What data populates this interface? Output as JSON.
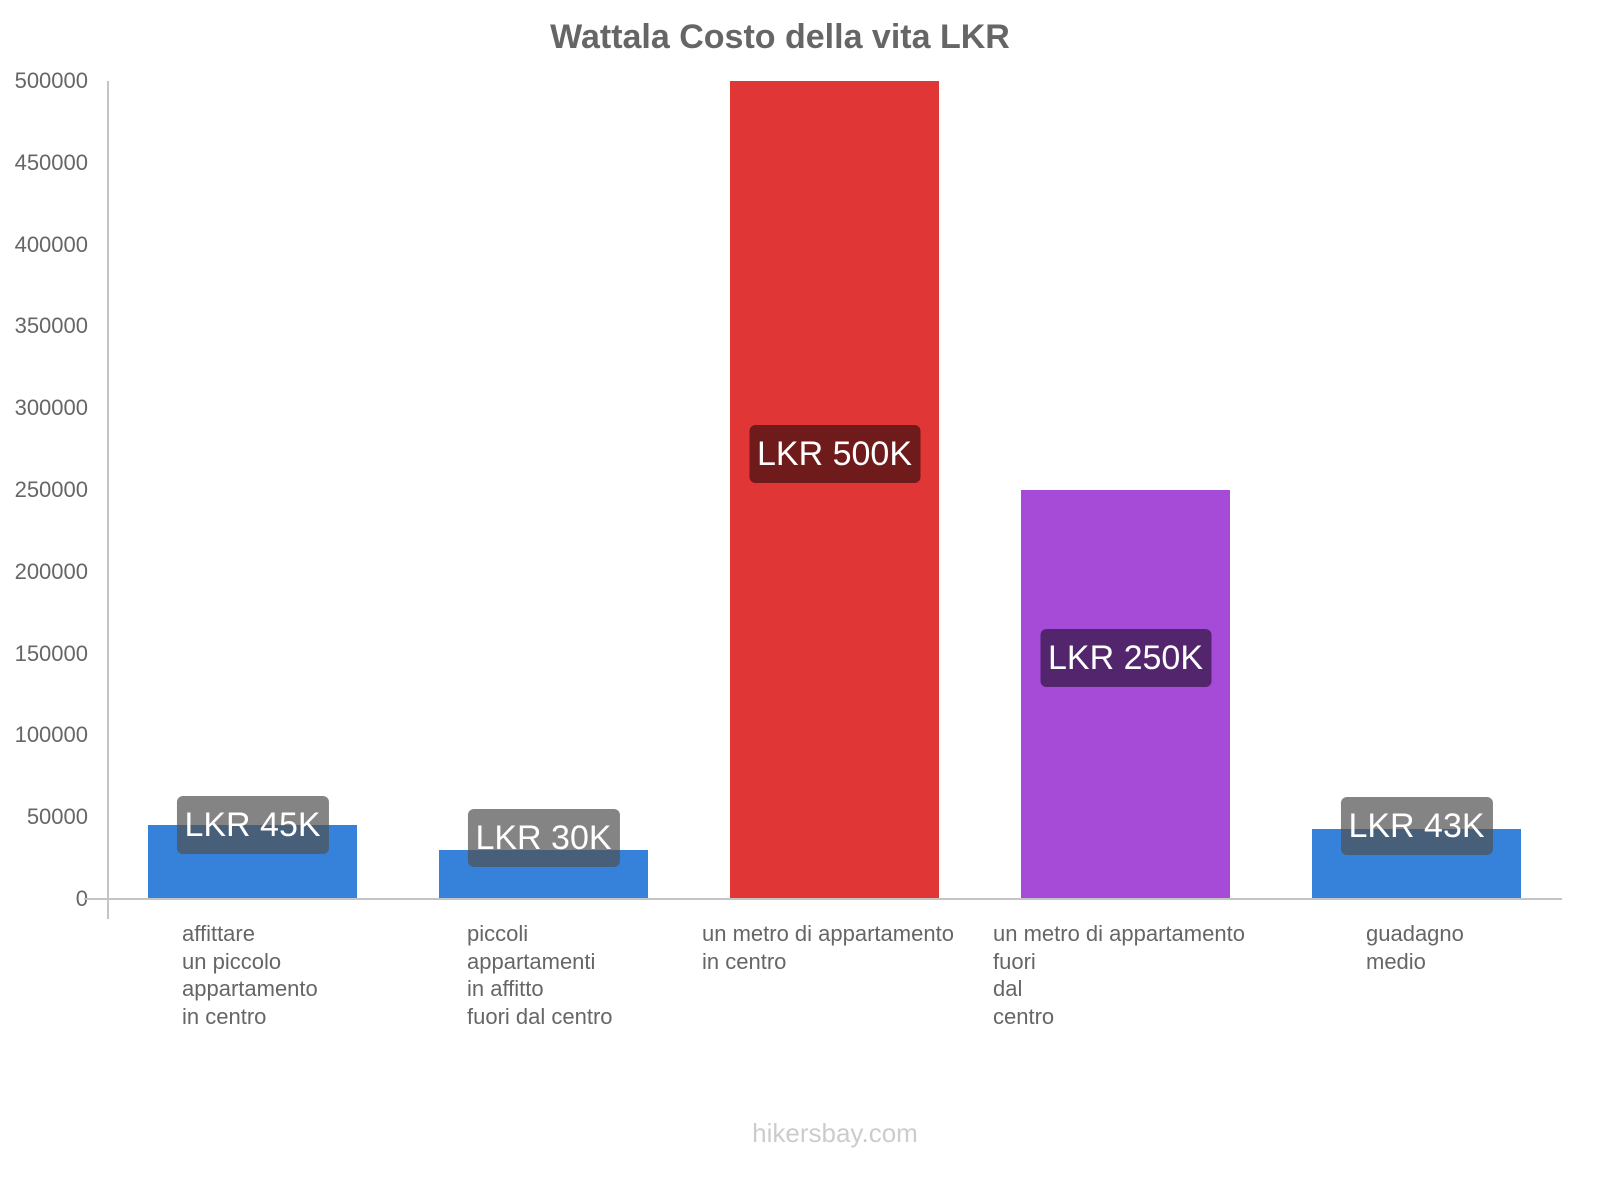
{
  "title": "Wattala Costo della vita LKR",
  "footer": "hikersbay.com",
  "y_axis": {
    "ticks": [
      "0",
      "50000",
      "100000",
      "150000",
      "200000",
      "250000",
      "300000",
      "350000",
      "400000",
      "450000",
      "500000"
    ]
  },
  "bars": [
    {
      "label": "affittare\nun piccolo\nappartamento\nin centro",
      "value": 45000,
      "value_label": "LKR 45K",
      "color": "#3682db",
      "label_bg": "#1e3e6a"
    },
    {
      "label": "piccoli\nappartamenti\nin affitto\nfuori dal centro",
      "value": 30000,
      "value_label": "LKR 30K",
      "color": "#3682db",
      "label_bg": "#1e3e6a"
    },
    {
      "label": "un metro di appartamento\nin centro",
      "value": 500000,
      "value_label": "LKR 500K",
      "color": "#e03636",
      "label_bg": "#701b1b"
    },
    {
      "label": "un metro di appartamento\nfuori\ndal\ncentro",
      "value": 250000,
      "value_label": "LKR 250K",
      "color": "#a64ad8",
      "label_bg": "#53256c"
    },
    {
      "label": "guadagno\nmedio",
      "value": 43000,
      "value_label": "LKR 43K",
      "color": "#3682db",
      "label_bg": "#1e3e6a"
    }
  ],
  "chart_data": {
    "type": "bar",
    "title": "Wattala Costo della vita LKR",
    "categories": [
      "affittare un piccolo appartamento in centro",
      "piccoli appartamenti in affitto fuori dal centro",
      "un metro di appartamento in centro",
      "un metro di appartamento fuori dal centro",
      "guadagno medio"
    ],
    "values": [
      45000,
      30000,
      500000,
      250000,
      43000
    ],
    "data_labels": [
      "LKR 45K",
      "LKR 30K",
      "LKR 500K",
      "LKR 250K",
      "LKR 43K"
    ],
    "colors": [
      "#3682db",
      "#3682db",
      "#e03636",
      "#a64ad8",
      "#3682db"
    ],
    "xlabel": "",
    "ylabel": "",
    "ylim": [
      0,
      500000
    ],
    "yticks": [
      0,
      50000,
      100000,
      150000,
      200000,
      250000,
      300000,
      350000,
      400000,
      450000,
      500000
    ],
    "grid": false,
    "legend": "none"
  }
}
